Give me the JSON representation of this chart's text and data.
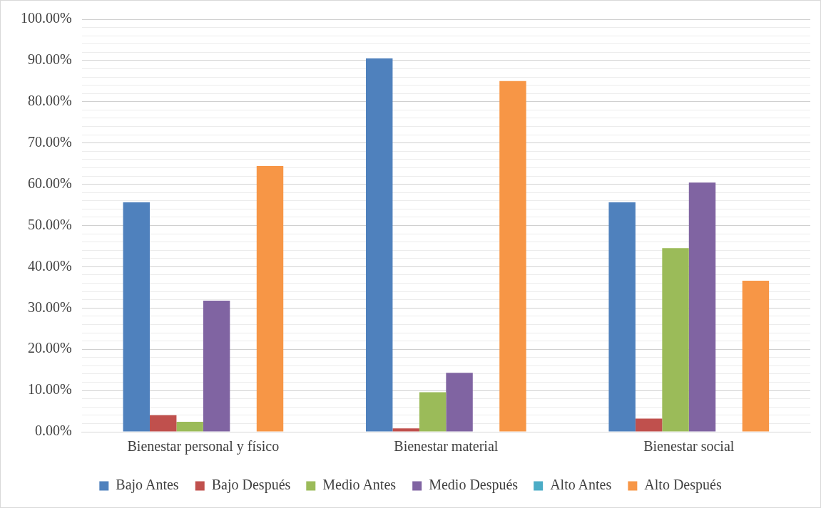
{
  "chart_data": {
    "type": "bar",
    "categories": [
      "Bienestar personal y físico",
      "Bienestar material",
      "Bienestar social"
    ],
    "series": [
      {
        "name": "Bajo Antes",
        "color": "#4f81bd",
        "values": [
          55.6,
          90.5,
          55.6
        ]
      },
      {
        "name": "Bajo Después",
        "color": "#c0504d",
        "values": [
          4.0,
          0.8,
          3.2
        ]
      },
      {
        "name": "Medio Antes",
        "color": "#9bbb59",
        "values": [
          2.4,
          9.6,
          44.5
        ]
      },
      {
        "name": "Medio Después",
        "color": "#8064a2",
        "values": [
          31.8,
          14.3,
          60.4
        ]
      },
      {
        "name": "Alto Antes",
        "color": "#4bacc6",
        "values": [
          0,
          0,
          0
        ]
      },
      {
        "name": "Alto Después",
        "color": "#f79646",
        "values": [
          64.4,
          85.0,
          36.6
        ]
      }
    ],
    "ylim": [
      0,
      100
    ],
    "yticks": [
      {
        "value": 0,
        "label": "0.00%"
      },
      {
        "value": 2,
        "label": null
      },
      {
        "value": 4,
        "label": null
      },
      {
        "value": 6,
        "label": null
      },
      {
        "value": 8,
        "label": null
      },
      {
        "value": 10,
        "label": "10.00%"
      },
      {
        "value": 12,
        "label": null
      },
      {
        "value": 14,
        "label": null
      },
      {
        "value": 16,
        "label": null
      },
      {
        "value": 18,
        "label": null
      },
      {
        "value": 20,
        "label": "20.00%"
      },
      {
        "value": 22,
        "label": null
      },
      {
        "value": 24,
        "label": null
      },
      {
        "value": 26,
        "label": null
      },
      {
        "value": 28,
        "label": null
      },
      {
        "value": 30,
        "label": "30.00%"
      },
      {
        "value": 32,
        "label": null
      },
      {
        "value": 34,
        "label": null
      },
      {
        "value": 36,
        "label": null
      },
      {
        "value": 38,
        "label": null
      },
      {
        "value": 40,
        "label": "40.00%"
      },
      {
        "value": 42,
        "label": null
      },
      {
        "value": 44,
        "label": null
      },
      {
        "value": 46,
        "label": null
      },
      {
        "value": 48,
        "label": null
      },
      {
        "value": 50,
        "label": "50.00%"
      },
      {
        "value": 52,
        "label": null
      },
      {
        "value": 54,
        "label": null
      },
      {
        "value": 56,
        "label": null
      },
      {
        "value": 58,
        "label": null
      },
      {
        "value": 60,
        "label": "60.00%"
      },
      {
        "value": 62,
        "label": null
      },
      {
        "value": 64,
        "label": null
      },
      {
        "value": 66,
        "label": null
      },
      {
        "value": 68,
        "label": null
      },
      {
        "value": 70,
        "label": "70.00%"
      },
      {
        "value": 72,
        "label": null
      },
      {
        "value": 74,
        "label": null
      },
      {
        "value": 76,
        "label": null
      },
      {
        "value": 78,
        "label": null
      },
      {
        "value": 80,
        "label": "80.00%"
      },
      {
        "value": 82,
        "label": null
      },
      {
        "value": 84,
        "label": null
      },
      {
        "value": 86,
        "label": null
      },
      {
        "value": 88,
        "label": null
      },
      {
        "value": 90,
        "label": "90.00%"
      },
      {
        "value": 92,
        "label": null
      },
      {
        "value": 94,
        "label": null
      },
      {
        "value": 96,
        "label": null
      },
      {
        "value": 98,
        "label": null
      },
      {
        "value": 100,
        "label": "100.00%"
      }
    ],
    "grid": "y",
    "legend": "bottom"
  }
}
